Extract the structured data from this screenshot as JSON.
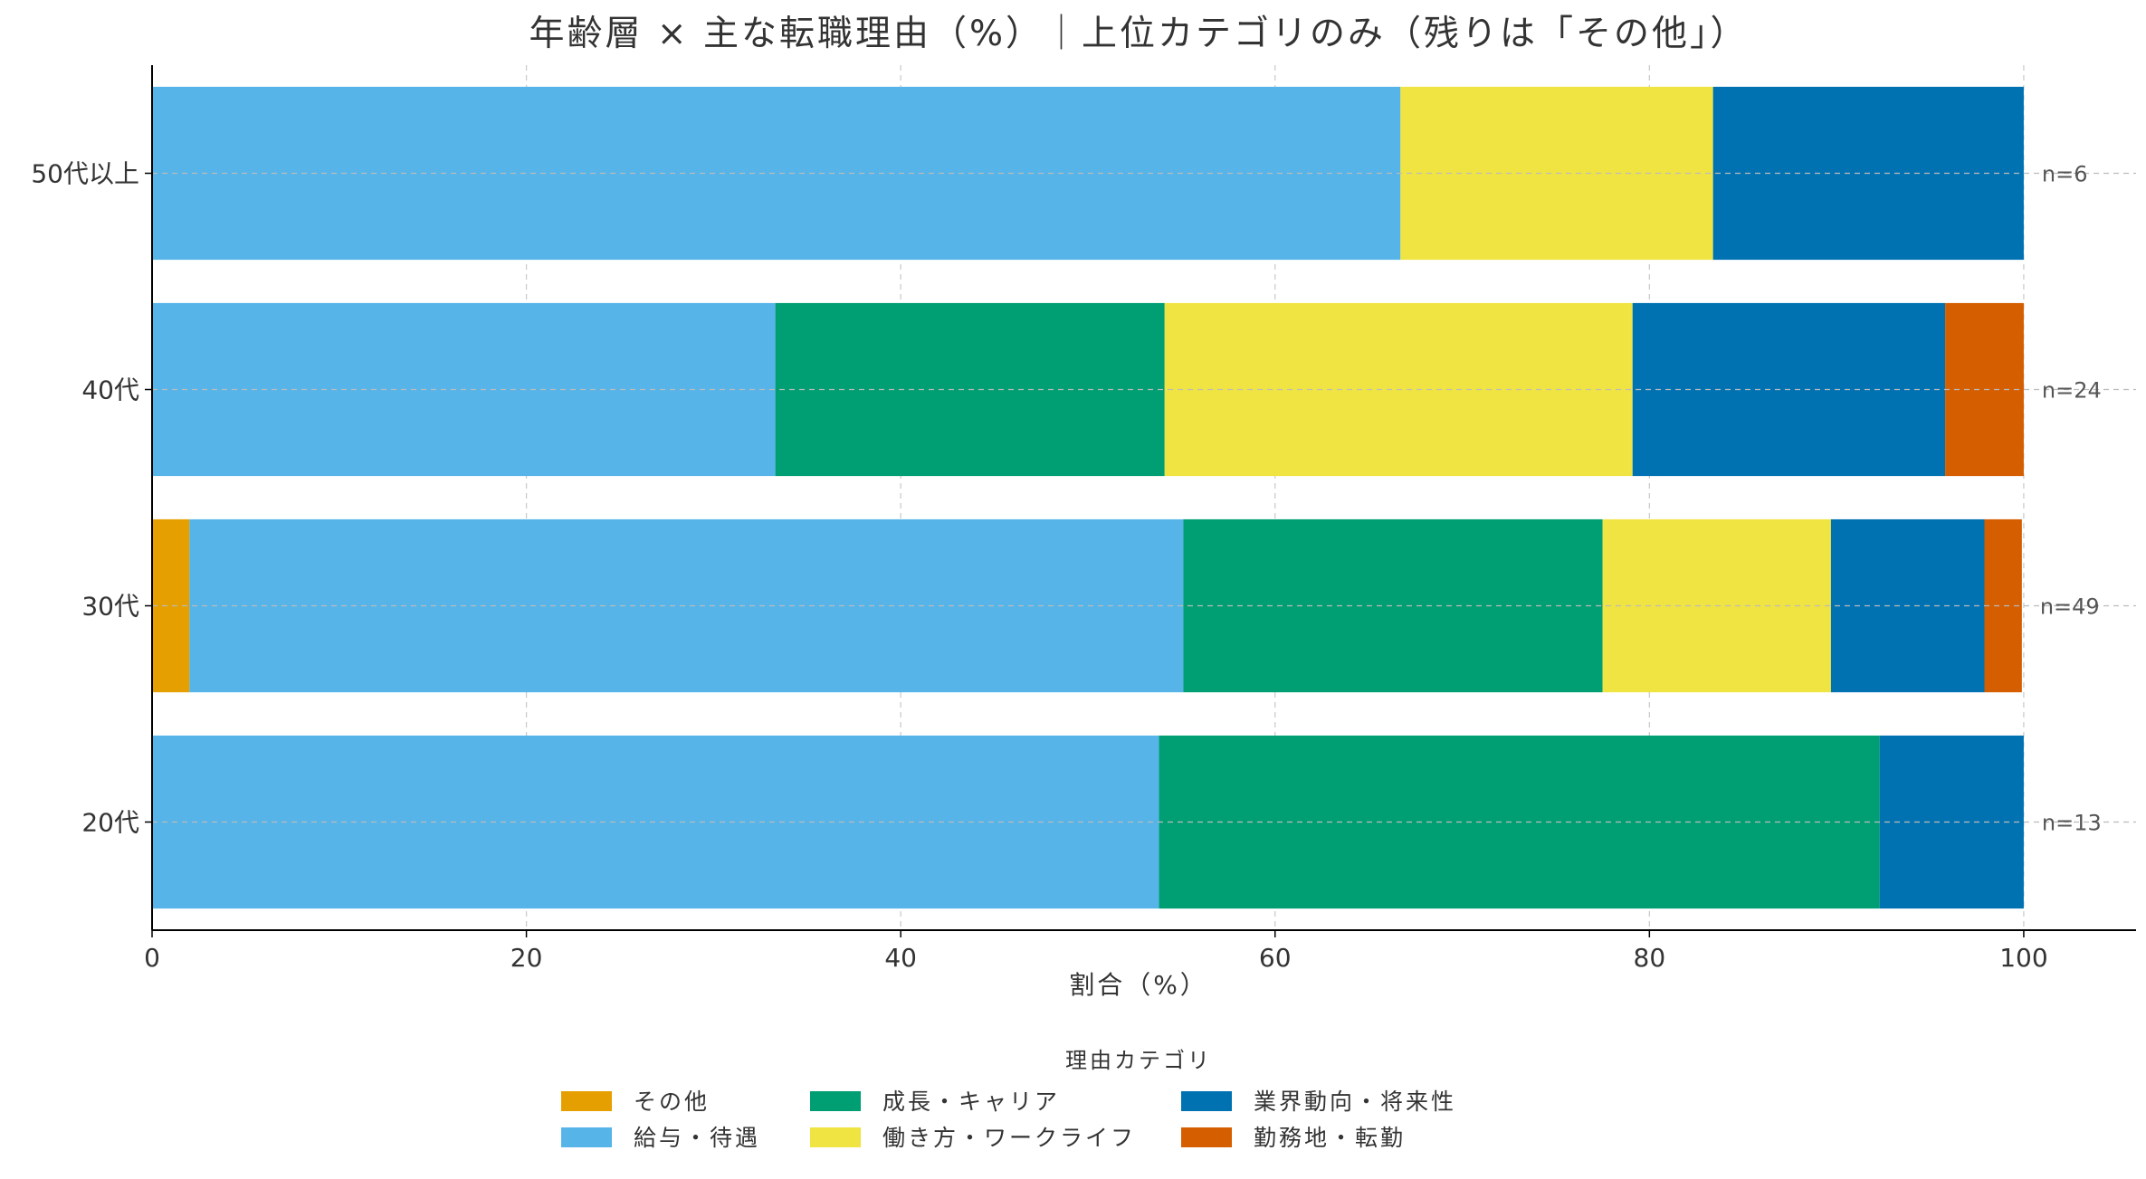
{
  "chart_data": {
    "type": "bar",
    "orientation": "horizontal",
    "stacked": true,
    "title": "年齢層 × 主な転職理由（%）｜上位カテゴリのみ（残りは「その他」）",
    "xlabel": "割合（%）",
    "ylabel": "",
    "xlim": [
      0,
      106
    ],
    "xticks": [
      "0",
      "20",
      "40",
      "60",
      "80",
      "100"
    ],
    "categories": [
      "20代",
      "30代",
      "40代",
      "50代以上"
    ],
    "series": [
      {
        "name": "その他",
        "color": "#E69F00",
        "values": [
          0,
          2.0,
          0,
          0
        ]
      },
      {
        "name": "給与・待遇",
        "color": "#56B4E9",
        "values": [
          53.8,
          53.1,
          33.3,
          66.7
        ]
      },
      {
        "name": "成長・キャリア",
        "color": "#009E73",
        "values": [
          38.5,
          22.4,
          20.8,
          0
        ]
      },
      {
        "name": "働き方・ワークライフ",
        "color": "#F0E442",
        "values": [
          0,
          12.2,
          25.0,
          16.7
        ]
      },
      {
        "name": "業界動向・将来性",
        "color": "#0072B2",
        "values": [
          7.7,
          8.2,
          16.7,
          16.6
        ]
      },
      {
        "name": "勤務地・転勤",
        "color": "#D55E00",
        "values": [
          0,
          2.0,
          4.2,
          0
        ]
      }
    ],
    "annotations": [
      "n=13",
      "n=49",
      "n=24",
      "n=6"
    ],
    "legend": {
      "title": "理由カテゴリ",
      "placement": "bottom-center",
      "columns": 4
    },
    "grid": true
  }
}
